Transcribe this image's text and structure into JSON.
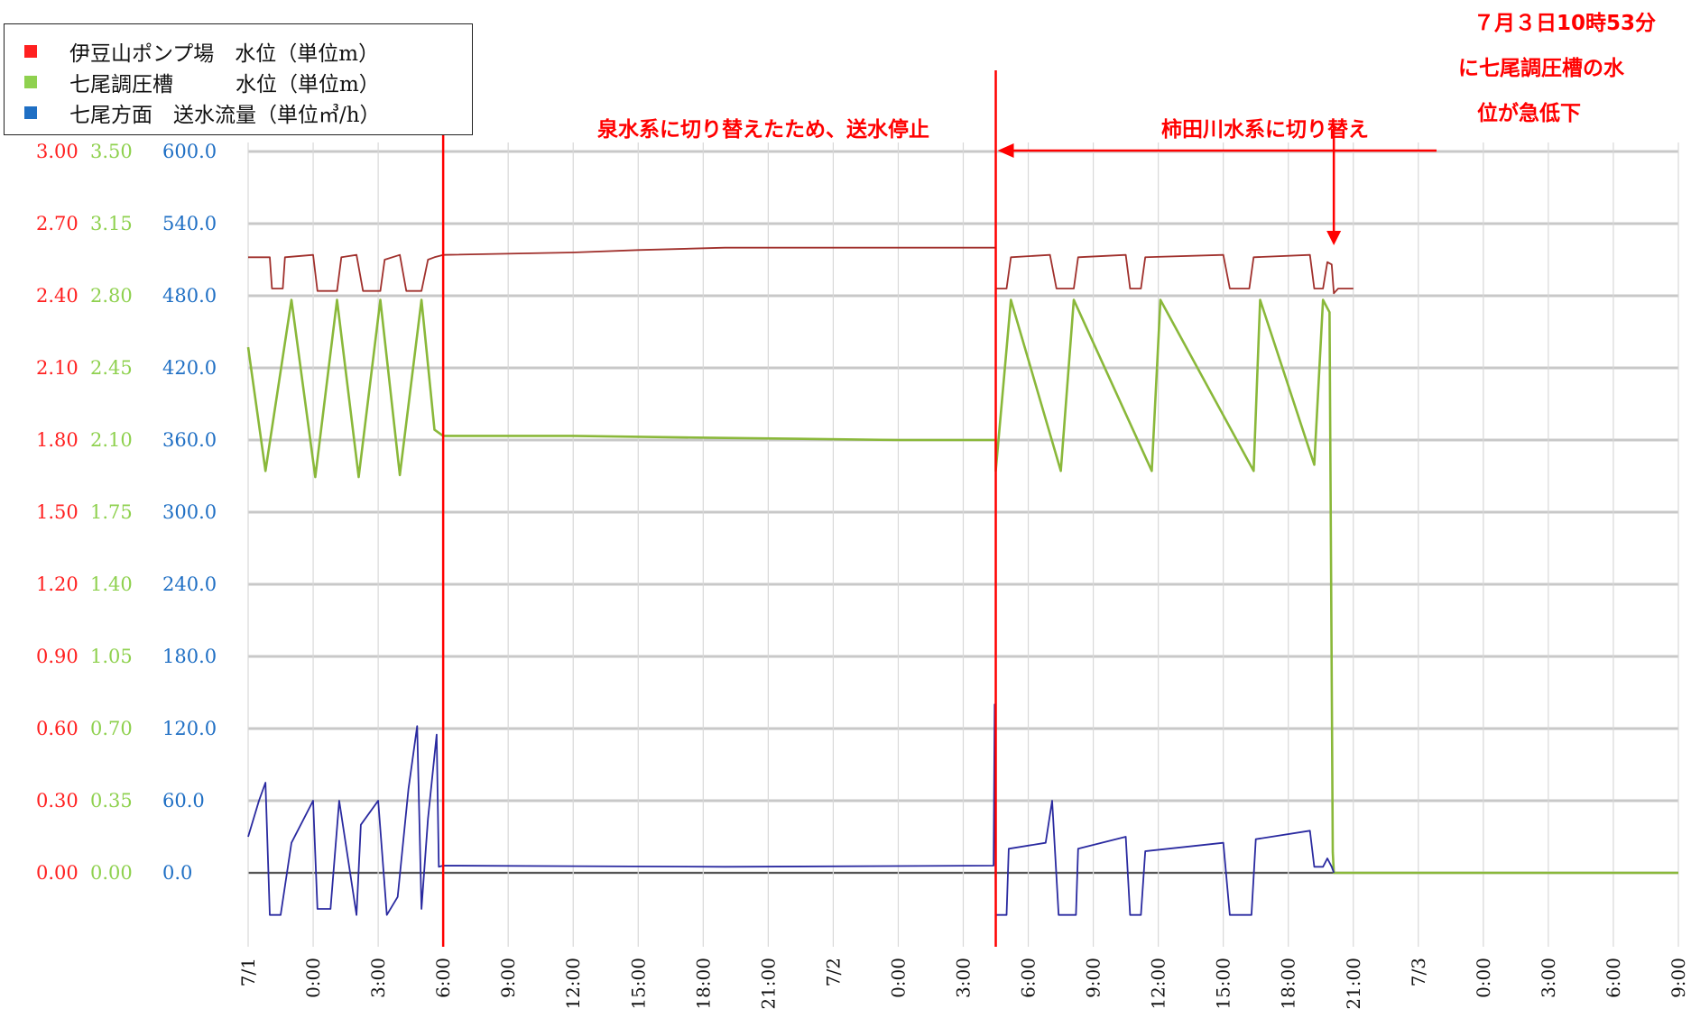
{
  "chart_data": {
    "type": "line",
    "title": "",
    "axes": {
      "red_axis": {
        "series": "伊豆山ポンプ場 水位",
        "range": [
          0,
          3.0
        ],
        "ticks": [
          "3.00",
          "2.70",
          "2.40",
          "2.10",
          "1.80",
          "1.50",
          "1.20",
          "0.90",
          "0.60",
          "0.30",
          "0.00"
        ],
        "color": "#ff2020"
      },
      "green_axis": {
        "series": "七尾調圧槽 水位",
        "range": [
          0,
          3.5
        ],
        "ticks": [
          "3.50",
          "3.15",
          "2.80",
          "2.45",
          "2.10",
          "1.75",
          "1.40",
          "1.05",
          "0.70",
          "0.35",
          "0.00"
        ],
        "color": "#8fd14f"
      },
      "blue_axis": {
        "series": "七尾方面 送水流量",
        "range": [
          0,
          600
        ],
        "ticks": [
          "600.0",
          "540.0",
          "480.0",
          "420.0",
          "360.0",
          "300.0",
          "240.0",
          "180.0",
          "120.0",
          "60.0",
          "0.0"
        ],
        "color": "#1f6fc4"
      }
    },
    "x_ticks": [
      "7/1",
      "0:00",
      "3:00",
      "6:00",
      "9:00",
      "12:00",
      "15:00",
      "18:00",
      "21:00",
      "7/2",
      "0:00",
      "3:00",
      "6:00",
      "9:00",
      "12:00",
      "15:00",
      "18:00",
      "21:00",
      "7/3",
      "0:00",
      "3:00",
      "6:00",
      "9:00"
    ],
    "x_range_hours": [
      0,
      66
    ],
    "legend": [
      {
        "swatch": "#ff2020",
        "label": "伊豆山ポンプ場　水位（単位m）"
      },
      {
        "swatch": "#8fd14f",
        "label": "七尾調圧槽　　　水位（単位m）"
      },
      {
        "swatch": "#1f6fc4",
        "label": "七尾方面　送水流量（単位㎥/h）"
      }
    ],
    "series": [
      {
        "name": "伊豆山ポンプ場 水位",
        "color": "#a0302c",
        "axis": "red_axis",
        "points": [
          [
            0,
            2.56
          ],
          [
            1,
            2.56
          ],
          [
            1.1,
            2.43
          ],
          [
            1.6,
            2.43
          ],
          [
            1.7,
            2.56
          ],
          [
            3,
            2.57
          ],
          [
            3.2,
            2.42
          ],
          [
            4.1,
            2.42
          ],
          [
            4.3,
            2.56
          ],
          [
            5,
            2.57
          ],
          [
            5.3,
            2.42
          ],
          [
            6.1,
            2.42
          ],
          [
            6.3,
            2.55
          ],
          [
            7,
            2.57
          ],
          [
            7.3,
            2.42
          ],
          [
            8,
            2.42
          ],
          [
            8.3,
            2.55
          ],
          [
            8.6,
            2.56
          ],
          [
            9,
            2.57
          ],
          [
            15,
            2.58
          ],
          [
            18,
            2.59
          ],
          [
            22,
            2.6
          ],
          [
            34.5,
            2.6
          ],
          [
            34.5,
            2.43
          ],
          [
            35,
            2.43
          ],
          [
            35.2,
            2.56
          ],
          [
            37,
            2.57
          ],
          [
            37.3,
            2.43
          ],
          [
            38.1,
            2.43
          ],
          [
            38.3,
            2.56
          ],
          [
            40.5,
            2.57
          ],
          [
            40.7,
            2.43
          ],
          [
            41.2,
            2.43
          ],
          [
            41.4,
            2.56
          ],
          [
            45,
            2.57
          ],
          [
            45.3,
            2.43
          ],
          [
            46.2,
            2.43
          ],
          [
            46.4,
            2.56
          ],
          [
            49,
            2.57
          ],
          [
            49.2,
            2.43
          ],
          [
            49.6,
            2.43
          ],
          [
            49.8,
            2.54
          ],
          [
            50,
            2.53
          ],
          [
            50.1,
            2.41
          ],
          [
            50.3,
            2.43
          ],
          [
            51,
            2.43
          ]
        ]
      },
      {
        "name": "七尾調圧槽 水位",
        "color": "#8ab83a",
        "axis": "green_axis",
        "points": [
          [
            0,
            2.55
          ],
          [
            0.8,
            1.95
          ],
          [
            2.0,
            2.78
          ],
          [
            3.1,
            1.92
          ],
          [
            4.1,
            2.78
          ],
          [
            5.1,
            1.92
          ],
          [
            6.1,
            2.78
          ],
          [
            7.0,
            1.93
          ],
          [
            8.0,
            2.78
          ],
          [
            8.6,
            2.15
          ],
          [
            9,
            2.12
          ],
          [
            15,
            2.12
          ],
          [
            22,
            2.11
          ],
          [
            30,
            2.1
          ],
          [
            34.5,
            2.1
          ],
          [
            34.5,
            1.95
          ],
          [
            35.2,
            2.78
          ],
          [
            37.5,
            1.95
          ],
          [
            38.1,
            2.78
          ],
          [
            41.7,
            1.95
          ],
          [
            42.1,
            2.78
          ],
          [
            46.4,
            1.95
          ],
          [
            46.7,
            2.78
          ],
          [
            49.2,
            1.98
          ],
          [
            49.6,
            2.78
          ],
          [
            49.9,
            2.72
          ],
          [
            50.05,
            0.1
          ],
          [
            50.1,
            0.0
          ],
          [
            50.4,
            0.0
          ],
          [
            66,
            0.0
          ]
        ]
      },
      {
        "name": "七尾方面 送水流量",
        "color": "#2a2aa0",
        "axis": "blue_axis",
        "points": [
          [
            0,
            30
          ],
          [
            0.5,
            60
          ],
          [
            0.8,
            75
          ],
          [
            1,
            -35
          ],
          [
            1.5,
            -35
          ],
          [
            2,
            25
          ],
          [
            3.0,
            60
          ],
          [
            3.2,
            -30
          ],
          [
            3.8,
            -30
          ],
          [
            4.2,
            60
          ],
          [
            5.0,
            -35
          ],
          [
            5.2,
            40
          ],
          [
            6.0,
            60
          ],
          [
            6.4,
            -35
          ],
          [
            6.9,
            -20
          ],
          [
            7.4,
            70
          ],
          [
            7.8,
            122
          ],
          [
            8.0,
            -30
          ],
          [
            8.3,
            45
          ],
          [
            8.7,
            115
          ],
          [
            8.8,
            5
          ],
          [
            9,
            6
          ],
          [
            22,
            5
          ],
          [
            34.4,
            6
          ],
          [
            34.45,
            140
          ],
          [
            34.5,
            -35
          ],
          [
            35,
            -35
          ],
          [
            35.1,
            20
          ],
          [
            36.8,
            25
          ],
          [
            37.1,
            60
          ],
          [
            37.4,
            -35
          ],
          [
            38.2,
            -35
          ],
          [
            38.3,
            20
          ],
          [
            40.5,
            30
          ],
          [
            40.7,
            -35
          ],
          [
            41.2,
            -35
          ],
          [
            41.4,
            18
          ],
          [
            45,
            25
          ],
          [
            45.3,
            -35
          ],
          [
            46.3,
            -35
          ],
          [
            46.5,
            28
          ],
          [
            49,
            35
          ],
          [
            49.2,
            5
          ],
          [
            49.6,
            5
          ],
          [
            49.8,
            12
          ],
          [
            50,
            5
          ],
          [
            50.1,
            0
          ]
        ]
      }
    ],
    "annotations": {
      "cut1": "泉水系に切り替えたため、送水停止",
      "cut2": "柿田川水系に切り替え",
      "event_l1": "７月３日10時53分",
      "event_l2": "に七尾調圧槽の水",
      "event_l3": "位が急低下"
    },
    "grid": true,
    "legend_position": "top-left"
  }
}
